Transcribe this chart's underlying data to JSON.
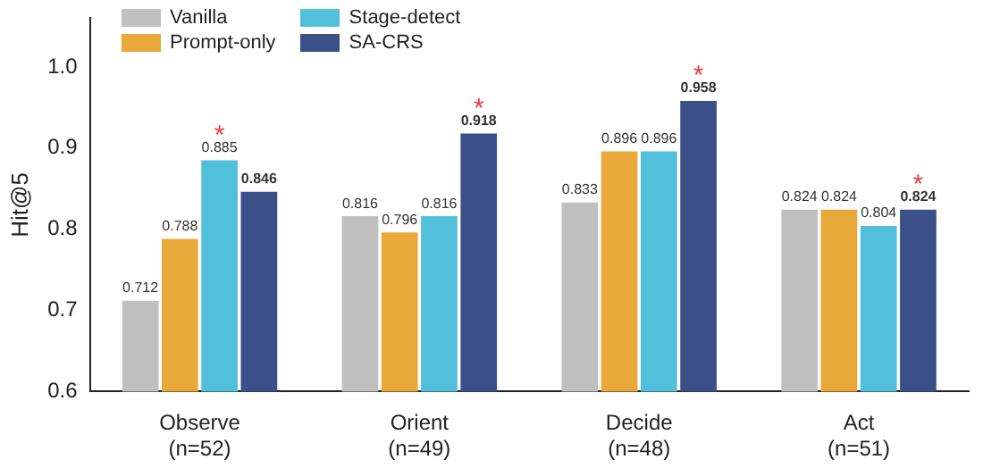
{
  "chart_data": {
    "type": "bar",
    "ylabel": "Hit@5",
    "categories": [
      "Observe\n(n=52)",
      "Orient\n(n=49)",
      "Decide\n(n=48)",
      "Act\n(n=51)"
    ],
    "series": [
      {
        "name": "Vanilla",
        "color": "#c0c0c0",
        "values": [
          0.712,
          0.816,
          0.833,
          0.824
        ]
      },
      {
        "name": "Prompt-only",
        "color": "#e8a93a",
        "values": [
          0.788,
          0.796,
          0.896,
          0.824
        ]
      },
      {
        "name": "Stage-detect",
        "color": "#52c0da",
        "values": [
          0.885,
          0.816,
          0.896,
          0.804
        ]
      },
      {
        "name": "SA-CRS",
        "color": "#3b5088",
        "values": [
          0.846,
          0.918,
          0.958,
          0.824
        ]
      }
    ],
    "ylim": [
      0.6,
      1.06
    ],
    "yticks": [
      0.6,
      0.7,
      0.8,
      0.9,
      {
        "value": 1,
        "label": "1.0"
      }
    ],
    "grid": false,
    "legend": "top left",
    "data_labels": true,
    "annotations": [
      "*",
      "*",
      "*",
      "*"
    ]
  }
}
